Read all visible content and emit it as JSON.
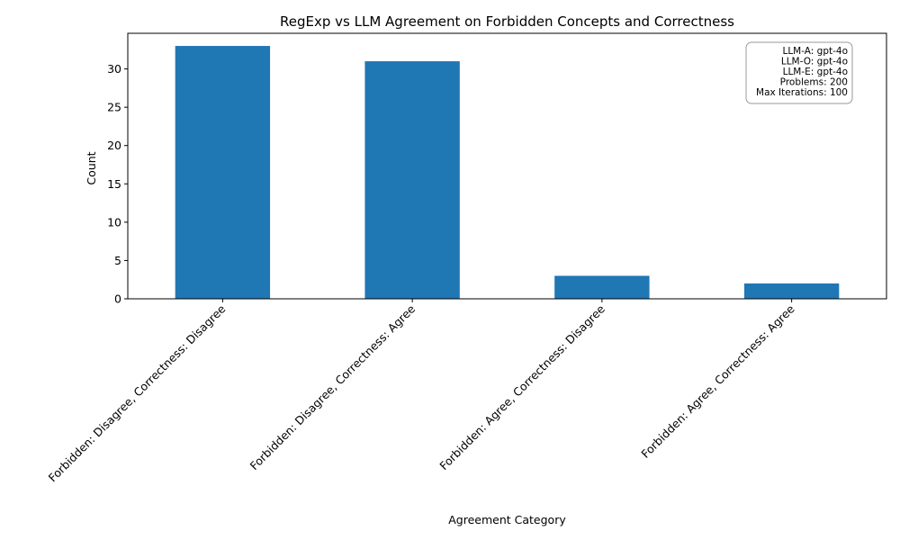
{
  "chart_data": {
    "type": "bar",
    "title": "RegExp vs LLM Agreement on Forbidden Concepts and Correctness",
    "xlabel": "Agreement Category",
    "ylabel": "Count",
    "categories": [
      "Forbidden: Disagree, Correctness: Disagree",
      "Forbidden: Disagree, Correctness: Agree",
      "Forbidden: Agree, Correctness: Disagree",
      "Forbidden: Agree, Correctness: Agree"
    ],
    "values": [
      33,
      31,
      3,
      2
    ],
    "ylim": [
      0,
      34.65
    ],
    "yticks": [
      0,
      5,
      10,
      15,
      20,
      25,
      30
    ],
    "bar_color": "#1f77b4",
    "grid": false,
    "info_box": {
      "placement": "top-right",
      "lines": [
        "LLM-A: gpt-4o",
        "LLM-O: gpt-4o",
        "LLM-E: gpt-4o",
        "Problems: 200",
        "Max Iterations: 100"
      ]
    }
  }
}
